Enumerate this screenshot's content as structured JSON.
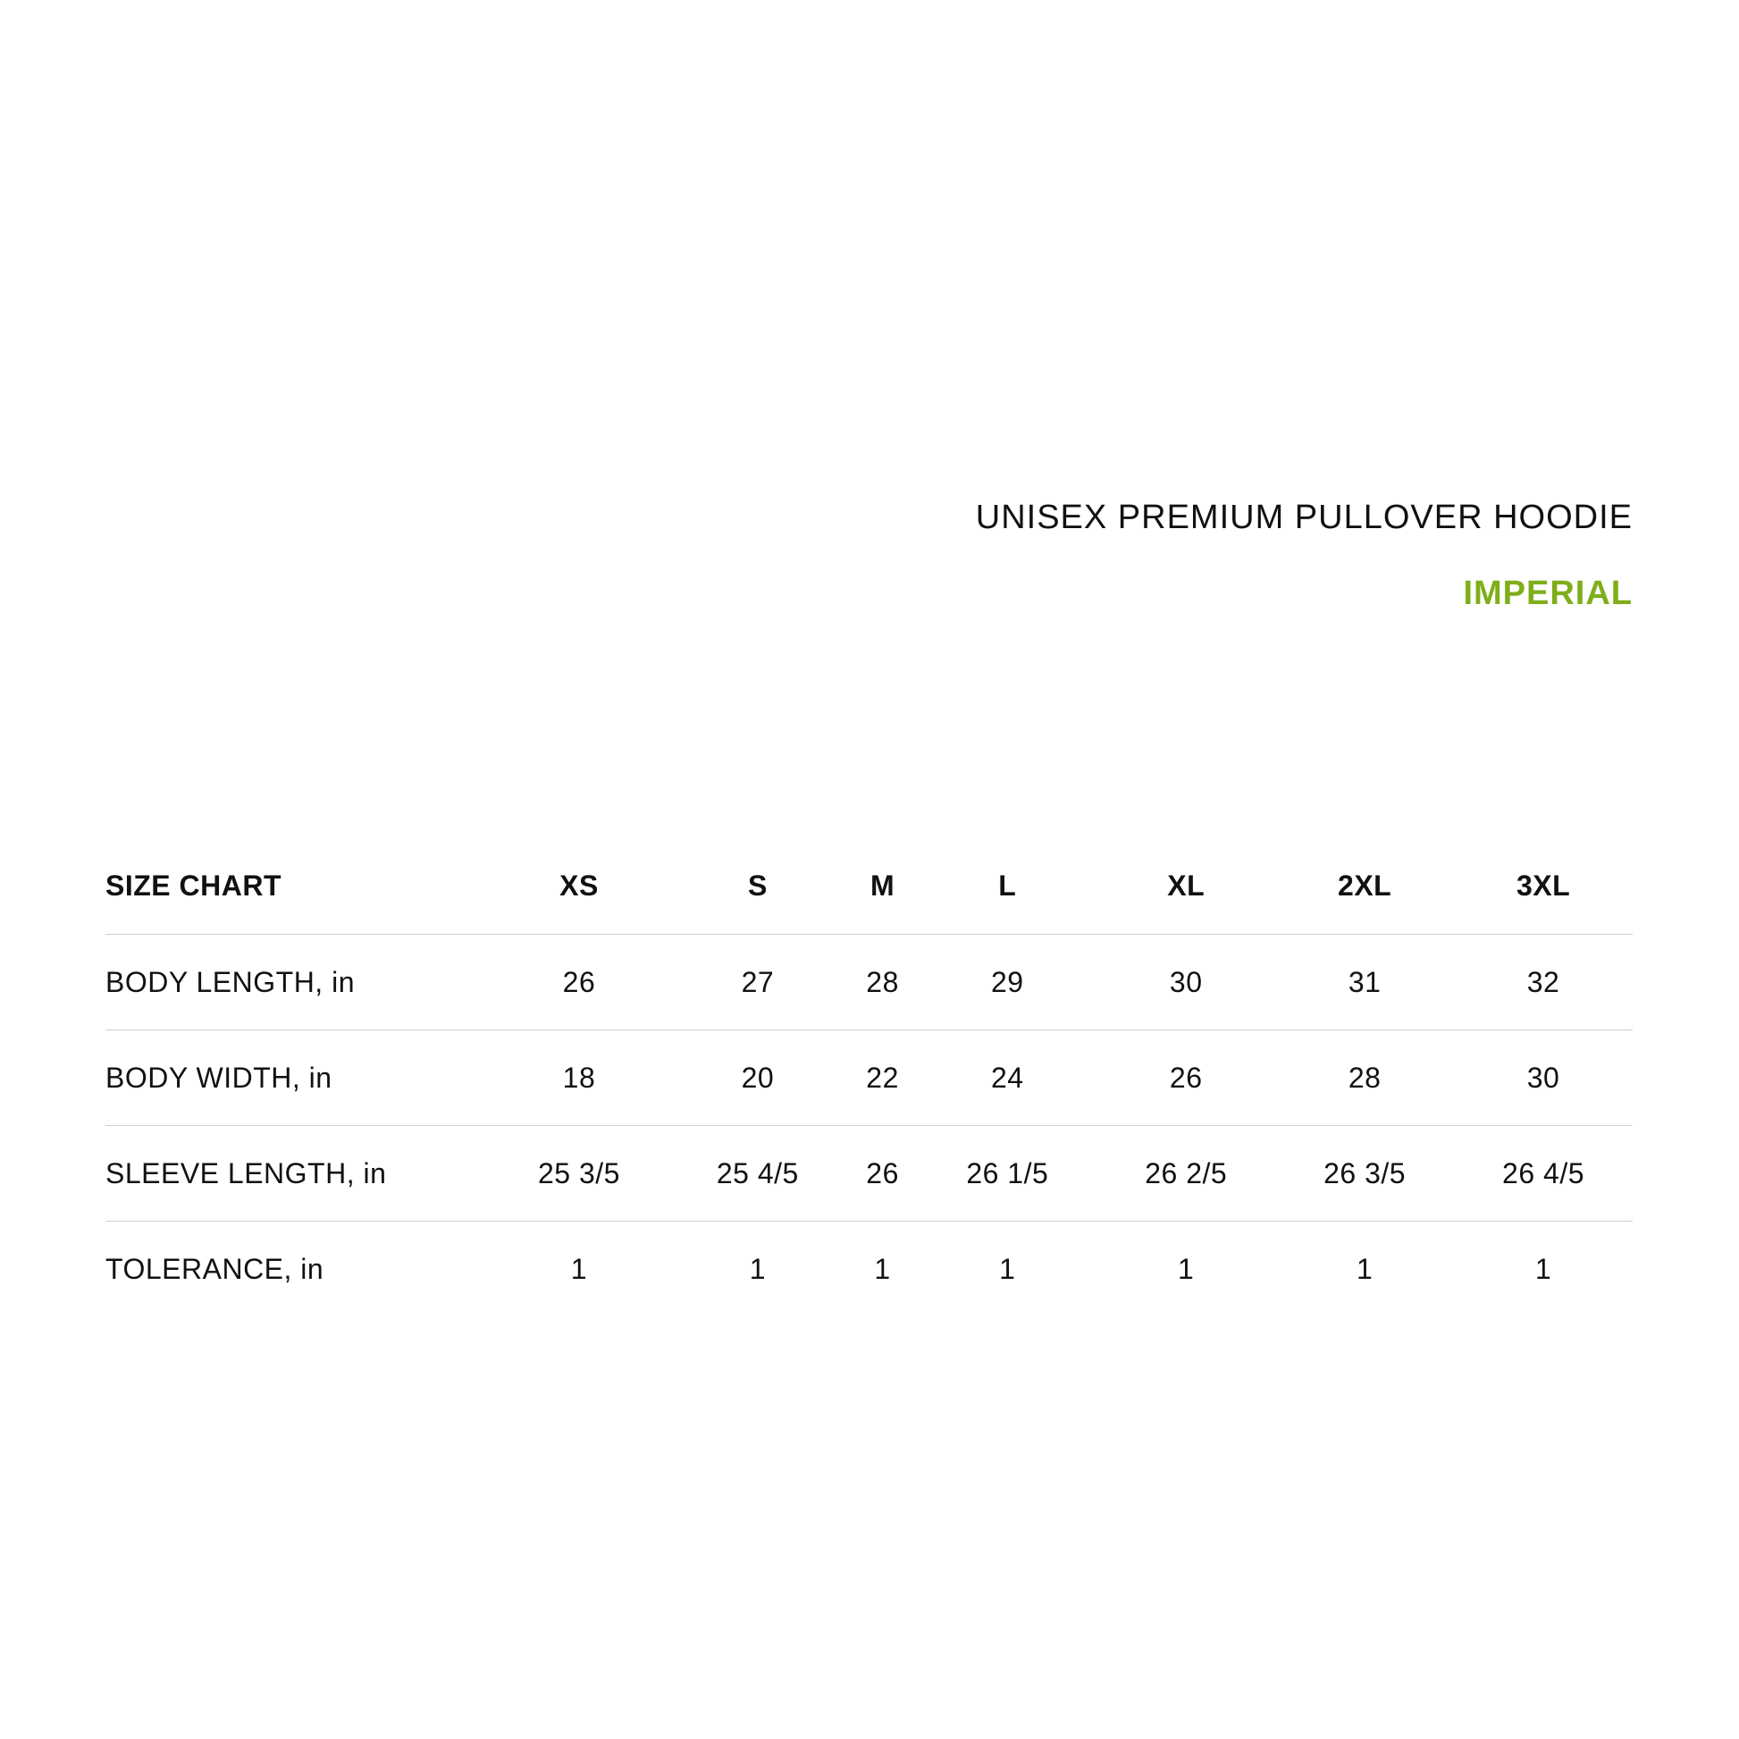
{
  "title": "UNISEX PREMIUM PULLOVER HOODIE",
  "unit_system": "IMPERIAL",
  "colors": {
    "accent": "#7fae1a",
    "text": "#111111",
    "divider": "#cfcfcf"
  },
  "table": {
    "header": [
      "SIZE CHART",
      "XS",
      "S",
      "M",
      "L",
      "XL",
      "2XL",
      "3XL"
    ],
    "rows": [
      [
        "BODY LENGTH, in",
        "26",
        "27",
        "28",
        "29",
        "30",
        "31",
        "32"
      ],
      [
        "BODY WIDTH, in",
        "18",
        "20",
        "22",
        "24",
        "26",
        "28",
        "30"
      ],
      [
        "SLEEVE LENGTH, in",
        "25 3/5",
        "25 4/5",
        "26",
        "26 1/5",
        "26 2/5",
        "26 3/5",
        "26 4/5"
      ],
      [
        "TOLERANCE, in",
        "1",
        "1",
        "1",
        "1",
        "1",
        "1",
        "1"
      ]
    ]
  }
}
